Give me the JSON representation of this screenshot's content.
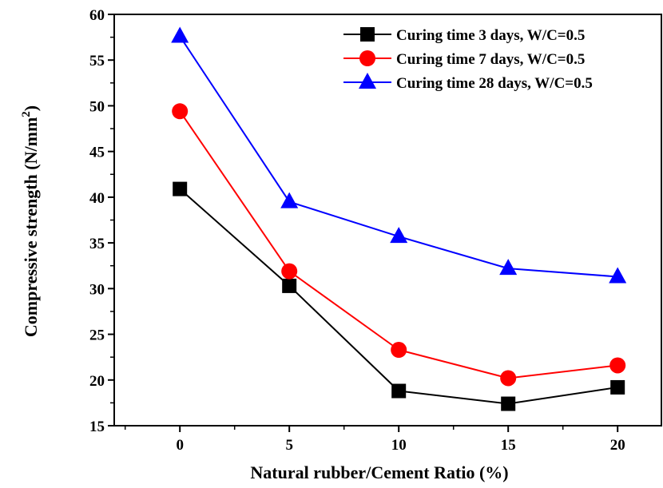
{
  "chart_data": {
    "type": "line",
    "x": [
      0,
      5,
      10,
      15,
      20
    ],
    "xlabel": "Natural rubber/Cement Ratio (%)",
    "ylabel_prefix": "Compressive strength (N/mm",
    "ylabel_sup": "2",
    "ylabel_suffix": ")",
    "xlim": [
      -3,
      22
    ],
    "ylim": [
      15,
      60
    ],
    "xticks": [
      "0",
      "5",
      "10",
      "15",
      "20"
    ],
    "yticks": [
      "15",
      "20",
      "25",
      "30",
      "35",
      "40",
      "45",
      "50",
      "55",
      "60"
    ],
    "grid": false,
    "legend_position": "top-right",
    "series": [
      {
        "name": "Curing time 3 days, W/C=0.5",
        "color": "#000000",
        "marker": "square",
        "values": [
          40.9,
          30.3,
          18.8,
          17.4,
          19.2
        ]
      },
      {
        "name": "Curing time 7 days, W/C=0.5",
        "color": "#ff0000",
        "marker": "circle",
        "values": [
          49.4,
          31.9,
          23.3,
          20.2,
          21.6
        ]
      },
      {
        "name": "Curing time 28 days, W/C=0.5",
        "color": "#0000ff",
        "marker": "triangle",
        "values": [
          57.6,
          39.5,
          35.7,
          32.2,
          31.3
        ]
      }
    ]
  }
}
